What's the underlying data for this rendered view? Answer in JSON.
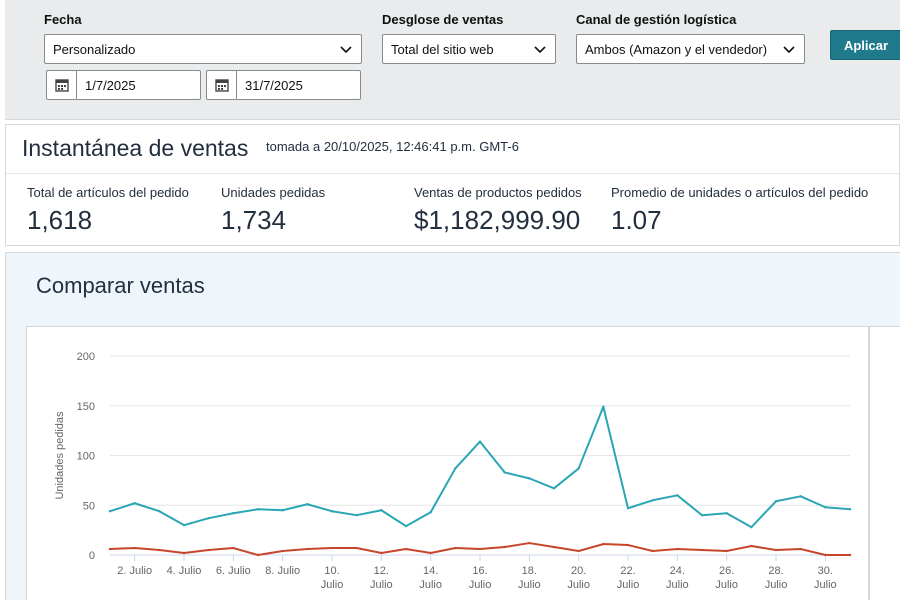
{
  "filters": {
    "fecha_label": "Fecha",
    "fecha_value": "Personalizado",
    "desglose_label": "Desglose de ventas",
    "desglose_value": "Total del sitio web",
    "canal_label": "Canal de gestión logística",
    "canal_value": "Ambos (Amazon y el vendedor)",
    "date_from": "1/7/2025",
    "date_to": "31/7/2025",
    "apply_label": "Aplicar"
  },
  "snapshot": {
    "title": "Instantánea de ventas",
    "timestamp": "tomada a 20/10/2025, 12:46:41 p.m. GMT-6",
    "metrics": [
      {
        "label": "Total de artículos del pedido",
        "value": "1,618"
      },
      {
        "label": "Unidades pedidas",
        "value": "1,734"
      },
      {
        "label": "Ventas de productos pedidos",
        "value": "$1,182,999.90"
      },
      {
        "label": "Promedio de unidades o artículos del pedido",
        "value": "1.07"
      }
    ]
  },
  "compare": {
    "title": "Comparar ventas"
  },
  "colors": {
    "accent": "#1f7a8c",
    "series_teal": "#2aa6b5",
    "series_red": "#c7462b"
  },
  "chart_data": {
    "type": "line",
    "ylabel": "Unidades pedidas",
    "ylim": [
      0,
      200
    ],
    "yticks": [
      0,
      50,
      100,
      150,
      200
    ],
    "grid": true,
    "x": [
      1,
      2,
      3,
      4,
      5,
      6,
      7,
      8,
      9,
      10,
      11,
      12,
      13,
      14,
      15,
      16,
      17,
      18,
      19,
      20,
      21,
      22,
      23,
      24,
      25,
      26,
      27,
      28,
      29,
      30,
      31
    ],
    "xtick_labels": [
      {
        "day": 2,
        "lines": [
          "2. Julio"
        ]
      },
      {
        "day": 4,
        "lines": [
          "4. Julio"
        ]
      },
      {
        "day": 6,
        "lines": [
          "6. Julio"
        ]
      },
      {
        "day": 8,
        "lines": [
          "8. Julio"
        ]
      },
      {
        "day": 10,
        "lines": [
          "10.",
          "Julio"
        ]
      },
      {
        "day": 12,
        "lines": [
          "12.",
          "Julio"
        ]
      },
      {
        "day": 14,
        "lines": [
          "14.",
          "Julio"
        ]
      },
      {
        "day": 16,
        "lines": [
          "16.",
          "Julio"
        ]
      },
      {
        "day": 18,
        "lines": [
          "18.",
          "Julio"
        ]
      },
      {
        "day": 20,
        "lines": [
          "20.",
          "Julio"
        ]
      },
      {
        "day": 22,
        "lines": [
          "22.",
          "Julio"
        ]
      },
      {
        "day": 24,
        "lines": [
          "24.",
          "Julio"
        ]
      },
      {
        "day": 26,
        "lines": [
          "26.",
          "Julio"
        ]
      },
      {
        "day": 28,
        "lines": [
          "28.",
          "Julio"
        ]
      },
      {
        "day": 30,
        "lines": [
          "30.",
          "Julio"
        ]
      }
    ],
    "series": [
      {
        "color": "#2aa6b5",
        "values": [
          44,
          52,
          44,
          30,
          37,
          42,
          46,
          45,
          51,
          44,
          40,
          45,
          29,
          43,
          87,
          114,
          83,
          77,
          67,
          87,
          149,
          47,
          55,
          60,
          40,
          42,
          28,
          54,
          59,
          48,
          46
        ]
      },
      {
        "color": "#c7462b",
        "values": [
          6,
          7,
          5,
          2,
          5,
          7,
          0,
          4,
          6,
          7,
          7,
          2,
          6,
          2,
          7,
          6,
          8,
          12,
          8,
          4,
          11,
          10,
          4,
          6,
          5,
          4,
          9,
          5,
          6,
          0,
          0
        ]
      }
    ]
  }
}
